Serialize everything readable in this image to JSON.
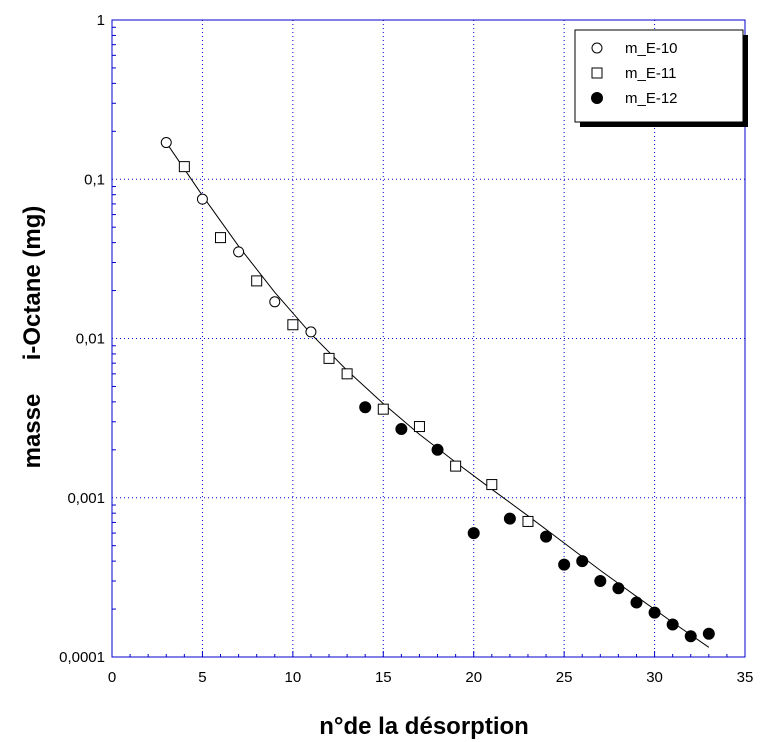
{
  "chart_data": {
    "type": "scatter",
    "xlabel": "n°de la désorption",
    "ylabel": "masse     i-Octane (mg)",
    "xlim": [
      0,
      35
    ],
    "ylim": [
      0.0001,
      1
    ],
    "yscale": "log",
    "grid": true,
    "legend_position": "top-right",
    "x_ticks": [
      "0",
      "5",
      "10",
      "15",
      "20",
      "25",
      "30",
      "35"
    ],
    "y_ticks": [
      "0,0001",
      "0,001",
      "0,01",
      "0,1",
      "1"
    ],
    "colors": {
      "grid": "#0000cc",
      "frame": "#0000cc",
      "marker": "#000000",
      "fit": "#000000"
    },
    "series": [
      {
        "name": "m_E-10",
        "marker": "open-circle",
        "x": [
          3,
          5,
          7,
          9,
          11
        ],
        "y": [
          0.17,
          0.075,
          0.035,
          0.017,
          0.011
        ]
      },
      {
        "name": "m_E-11",
        "marker": "open-square",
        "x": [
          4,
          6,
          8,
          10,
          12,
          13,
          15,
          17,
          19,
          21,
          23
        ],
        "y": [
          0.12,
          0.043,
          0.023,
          0.0122,
          0.0075,
          0.006,
          0.0036,
          0.0028,
          0.00158,
          0.00121,
          0.00071
        ]
      },
      {
        "name": "m_E-12",
        "marker": "filled-circle",
        "x": [
          14,
          16,
          18,
          20,
          22,
          24,
          25,
          26,
          27,
          28,
          29,
          30,
          31,
          32,
          33
        ],
        "y": [
          0.0037,
          0.0027,
          0.002,
          0.0006,
          0.00074,
          0.00057,
          0.00038,
          0.0004,
          0.0003,
          0.00027,
          0.00022,
          0.00019,
          0.00016,
          0.000135,
          0.00014
        ]
      }
    ],
    "fit_line": {
      "x": [
        3,
        5,
        7,
        9,
        11,
        13,
        15,
        17,
        19,
        21,
        23,
        25,
        27,
        29,
        31,
        33
      ],
      "y": [
        0.17,
        0.079,
        0.038,
        0.0195,
        0.0107,
        0.0063,
        0.0039,
        0.0025,
        0.00167,
        0.00113,
        0.00077,
        0.00052,
        0.00035,
        0.00024,
        0.000165,
        0.000115
      ]
    }
  }
}
